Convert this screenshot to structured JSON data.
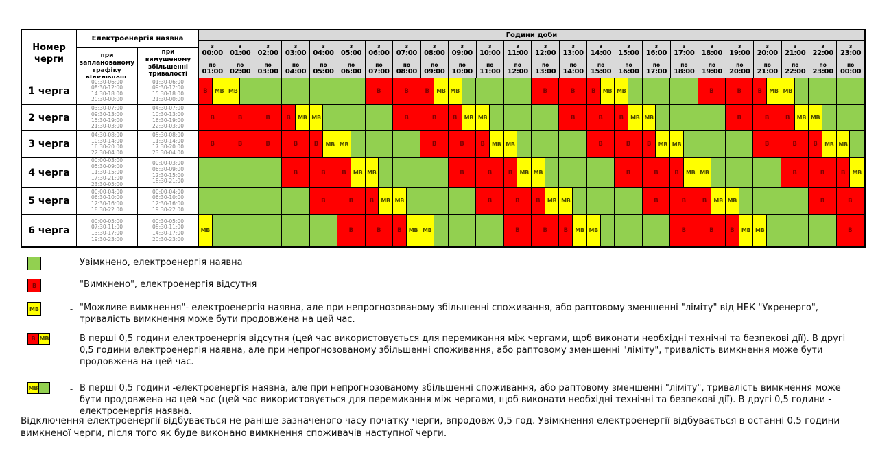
{
  "colors": {
    "on_green": "#92d050",
    "off_red": "#ff0000",
    "maybe_yellow": "#ffff00",
    "header_gray": "#d9d9d9",
    "times_text": "#808080",
    "v_label_text": "#7e0000",
    "mv_label_text": "#4c4c00"
  },
  "table": {
    "corner_header": "Номер черги",
    "avail_header": "Електроенергія наявна",
    "planned_header": "при запланованому графіку відключень",
    "forced_header": "при вимушеному збільшенні тривалості відключення",
    "hours_title": "Години доби",
    "from_prefix": "з",
    "to_prefix": "по",
    "cell_labels": {
      "off": "В",
      "maybe": "МВ"
    }
  },
  "chart_data": {
    "type": "heatmap",
    "title": "Години доби",
    "legend_position": "bottom",
    "x_labels": [
      [
        "00:00",
        "01:00"
      ],
      [
        "01:00",
        "02:00"
      ],
      [
        "02:00",
        "03:00"
      ],
      [
        "03:00",
        "04:00"
      ],
      [
        "04:00",
        "05:00"
      ],
      [
        "05:00",
        "06:00"
      ],
      [
        "06:00",
        "07:00"
      ],
      [
        "07:00",
        "08:00"
      ],
      [
        "08:00",
        "09:00"
      ],
      [
        "09:00",
        "10:00"
      ],
      [
        "10:00",
        "11:00"
      ],
      [
        "11:00",
        "12:00"
      ],
      [
        "12:00",
        "13:00"
      ],
      [
        "13:00",
        "14:00"
      ],
      [
        "14:00",
        "15:00"
      ],
      [
        "15:00",
        "16:00"
      ],
      [
        "16:00",
        "17:00"
      ],
      [
        "17:00",
        "18:00"
      ],
      [
        "18:00",
        "19:00"
      ],
      [
        "19:00",
        "20:00"
      ],
      [
        "20:00",
        "21:00"
      ],
      [
        "21:00",
        "22:00"
      ],
      [
        "22:00",
        "23:00"
      ],
      [
        "23:00",
        "00:00"
      ]
    ],
    "cell_states": {
      "on": "green, power available",
      "off": "red В, power off",
      "off_mb": "first half red В, second half yellow МВ",
      "mb_on": "first half yellow МВ, second half green"
    },
    "rows": [
      {
        "label": "1 черга",
        "planned": [
          "00:30-06:00",
          "08:30-12:00",
          "14:30-18:00",
          "20:30-00:00"
        ],
        "forced": [
          "01:30-06:00",
          "09:30-12:00",
          "15:30-18:00",
          "21:30-00:00"
        ],
        "cells": [
          "off_mb",
          "mb_on",
          "on",
          "on",
          "on",
          "on",
          "off",
          "off",
          "off_mb",
          "mb_on",
          "on",
          "on",
          "off",
          "off",
          "off_mb",
          "mb_on",
          "on",
          "on",
          "off",
          "off",
          "off_mb",
          "mb_on",
          "on",
          "on"
        ]
      },
      {
        "label": "2 черга",
        "planned": [
          "03:30-07:00",
          "09:30-13:00",
          "15:30-19:00",
          "21:30-03:00"
        ],
        "forced": [
          "04:30-07:00",
          "10:30-13:00",
          "16:30-19:00",
          "22:30-03:00"
        ],
        "cells": [
          "off",
          "off",
          "off",
          "off_mb",
          "mb_on",
          "on",
          "on",
          "off",
          "off",
          "off_mb",
          "mb_on",
          "on",
          "on",
          "off",
          "off",
          "off_mb",
          "mb_on",
          "on",
          "on",
          "off",
          "off",
          "off_mb",
          "mb_on",
          "on"
        ]
      },
      {
        "label": "3 черга",
        "planned": [
          "04:30-08:00",
          "10:30-14:00",
          "16:30-20:00",
          "22:30-04:00"
        ],
        "forced": [
          "05:30-08:00",
          "11:30-14:00",
          "17:30-20:00",
          "23:30-04:00"
        ],
        "cells": [
          "off",
          "off",
          "off",
          "off",
          "off_mb",
          "mb_on",
          "on",
          "on",
          "off",
          "off",
          "off_mb",
          "mb_on",
          "on",
          "on",
          "off",
          "off",
          "off_mb",
          "mb_on",
          "on",
          "on",
          "off",
          "off",
          "off_mb",
          "mb_on"
        ]
      },
      {
        "label": "4 черга",
        "planned": [
          "00:00-03:00",
          "05:30-09:00",
          "11:30-15:00",
          "17:30-21:00",
          "23:30-05:00"
        ],
        "forced": [
          "00:00-03:00",
          "06:30-09:00",
          "12:30-15:00",
          "18:30-21:00"
        ],
        "cells": [
          "on",
          "on",
          "on",
          "off",
          "off",
          "off_mb",
          "mb_on",
          "on",
          "on",
          "off",
          "off",
          "off_mb",
          "mb_on",
          "on",
          "on",
          "off",
          "off",
          "off_mb",
          "mb_on",
          "on",
          "on",
          "off",
          "off",
          "off_mb"
        ]
      },
      {
        "label": "5 черга",
        "planned": [
          "00:00-04:00",
          "06:30-10:00",
          "12:30-16:00",
          "18:30-22:00"
        ],
        "forced": [
          "00:00-04:00",
          "06:30-10:00",
          "12:30-16:00",
          "19:30-22:00"
        ],
        "cells": [
          "on",
          "on",
          "on",
          "on",
          "off",
          "off",
          "off_mb",
          "mb_on",
          "on",
          "on",
          "off",
          "off",
          "off_mb",
          "mb_on",
          "on",
          "on",
          "off",
          "off",
          "off_mb",
          "mb_on",
          "on",
          "on",
          "off",
          "off"
        ]
      },
      {
        "label": "6 черга",
        "planned": [
          "00:00-05:00",
          "07:30-11:00",
          "13:30-17:00",
          "19:30-23:00"
        ],
        "forced": [
          "00:30-05:00",
          "08:30-11:00",
          "14:30-17:00",
          "20:30-23:00"
        ],
        "cells": [
          "mb_on",
          "on",
          "on",
          "on",
          "on",
          "off",
          "off",
          "off_mb",
          "mb_on",
          "on",
          "on",
          "off",
          "off",
          "off_mb",
          "mb_on",
          "on",
          "on",
          "off",
          "off",
          "off_mb",
          "mb_on",
          "on",
          "on",
          "off"
        ]
      }
    ]
  },
  "legend_dash": "-",
  "legend": [
    {
      "swatch": "on",
      "text": "Увімкнено, електроенергія наявна"
    },
    {
      "swatch": "off",
      "text": "\"Вимкнено\", електроенергія відсутня"
    },
    {
      "swatch": "maybe",
      "text": "\"Можливе вимкнення\"- електроенергія наявна, але при непрогнозованому збільшенні споживання, або раптовому зменшенні \"ліміту\" від НЕК \"Укренерго\", тривалість вимкнення може бути продовжена на цей час."
    },
    {
      "swatch": "off_maybe",
      "text": "В перші 0,5 години електроенергія відсутня (цей час використовується для перемикання між чергами, щоб виконати необхідні технічні та безпекові дії). В другі 0,5 години електроенергія наявна, але при непрогнозованому збільшенні споживання, або раптовому зменшенні \"ліміту\", тривалість вимкнення може бути продовжена на цей час."
    },
    {
      "swatch": "maybe_on",
      "text": "В перші 0,5 години -електроенергія наявна, але при непрогнозованому збільшенні споживання, або раптовому зменшенні \"ліміту\", тривалість вимкнення може бути продовжена на цей час (цей час використовується для перемикання між чергами, щоб виконати необхідні технічні та безпекові дії). В другі 0,5 години - електроенергія наявна."
    }
  ],
  "footer": "Відключення електроенергії відбувається не раніше зазначеного часу початку черги, впродовж 0,5 год. Увімкнення електроенергії відбувається в останні 0,5 години вимкненої черги, після того як буде виконано вимкнення споживачів наступної черги."
}
